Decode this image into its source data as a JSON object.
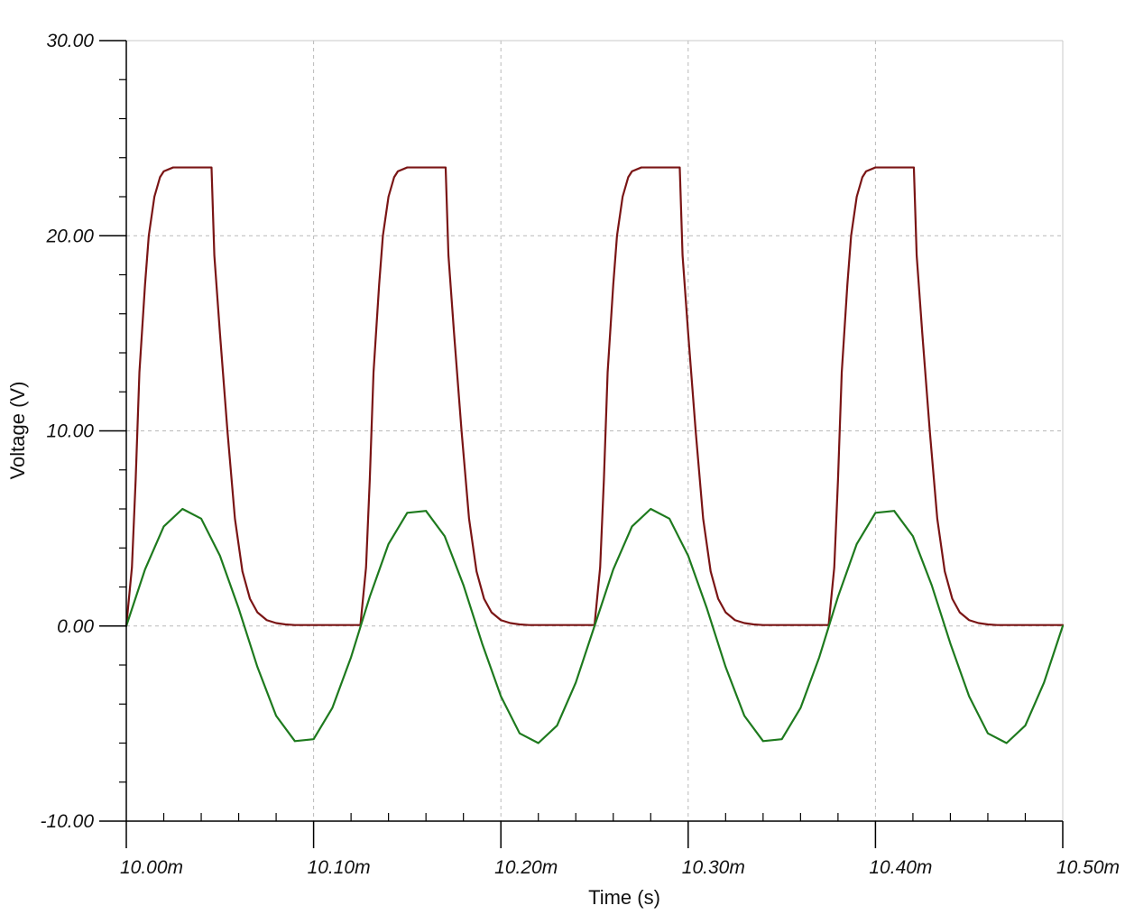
{
  "chart_data": {
    "type": "line",
    "xlabel": "Time (s)",
    "ylabel": "Voltage (V)",
    "xlim": [
      10.0,
      10.5
    ],
    "ylim": [
      -10,
      30
    ],
    "x_unit_suffix": "m",
    "x_ticks": [
      10.0,
      10.1,
      10.2,
      10.3,
      10.4,
      10.5
    ],
    "x_tick_labels": [
      "10.00m",
      "10.10m",
      "10.20m",
      "10.30m",
      "10.40m",
      "10.50m"
    ],
    "y_ticks": [
      -10,
      0,
      10,
      20,
      30
    ],
    "y_tick_labels": [
      "-10.00",
      "0.00",
      "10.00",
      "20.00",
      "30.00"
    ],
    "grid": true,
    "legend": "none",
    "series": [
      {
        "color": "#7a1515",
        "x": [
          10.0,
          10.003,
          10.005,
          10.007,
          10.01,
          10.012,
          10.015,
          10.018,
          10.02,
          10.025,
          10.03,
          10.035,
          10.04,
          10.0455,
          10.047,
          10.05,
          10.054,
          10.058,
          10.062,
          10.066,
          10.07,
          10.075,
          10.08,
          10.085,
          10.09,
          10.1,
          10.11,
          10.12,
          10.125,
          10.128,
          10.13,
          10.132,
          10.135,
          10.137,
          10.14,
          10.143,
          10.145,
          10.15,
          10.155,
          10.16,
          10.165,
          10.1705,
          10.172,
          10.175,
          10.179,
          10.183,
          10.187,
          10.191,
          10.195,
          10.2,
          10.205,
          10.21,
          10.215,
          10.225,
          10.235,
          10.245,
          10.25,
          10.253,
          10.255,
          10.257,
          10.26,
          10.262,
          10.265,
          10.268,
          10.27,
          10.275,
          10.28,
          10.285,
          10.29,
          10.2955,
          10.297,
          10.3,
          10.304,
          10.308,
          10.312,
          10.316,
          10.32,
          10.325,
          10.33,
          10.335,
          10.34,
          10.35,
          10.36,
          10.37,
          10.375,
          10.378,
          10.38,
          10.382,
          10.385,
          10.387,
          10.39,
          10.393,
          10.395,
          10.4,
          10.405,
          10.41,
          10.415,
          10.4205,
          10.422,
          10.425,
          10.429,
          10.433,
          10.437,
          10.441,
          10.445,
          10.45,
          10.455,
          10.46,
          10.465,
          10.475,
          10.485,
          10.495,
          10.5
        ],
        "y": [
          0.0,
          3.0,
          7.5,
          13.0,
          17.5,
          20.0,
          22.0,
          23.0,
          23.3,
          23.5,
          23.5,
          23.5,
          23.5,
          23.5,
          19.0,
          15.0,
          10.0,
          5.5,
          2.8,
          1.4,
          0.7,
          0.3,
          0.15,
          0.08,
          0.05,
          0.05,
          0.05,
          0.05,
          0.05,
          3.0,
          7.5,
          13.0,
          17.5,
          20.0,
          22.0,
          23.0,
          23.3,
          23.5,
          23.5,
          23.5,
          23.5,
          23.5,
          19.0,
          15.0,
          10.0,
          5.5,
          2.8,
          1.4,
          0.7,
          0.3,
          0.15,
          0.08,
          0.05,
          0.05,
          0.05,
          0.05,
          0.05,
          3.0,
          7.5,
          13.0,
          17.5,
          20.0,
          22.0,
          23.0,
          23.3,
          23.5,
          23.5,
          23.5,
          23.5,
          23.5,
          19.0,
          15.0,
          10.0,
          5.5,
          2.8,
          1.4,
          0.7,
          0.3,
          0.15,
          0.08,
          0.05,
          0.05,
          0.05,
          0.05,
          0.05,
          3.0,
          7.5,
          13.0,
          17.5,
          20.0,
          22.0,
          23.0,
          23.3,
          23.5,
          23.5,
          23.5,
          23.5,
          23.5,
          19.0,
          15.0,
          10.0,
          5.5,
          2.8,
          1.4,
          0.7,
          0.3,
          0.15,
          0.08,
          0.05,
          0.05,
          0.05,
          0.05,
          0.05
        ]
      },
      {
        "color": "#1e7a1e",
        "x": [
          10.0,
          10.01,
          10.02,
          10.03,
          10.04,
          10.05,
          10.06,
          10.07,
          10.08,
          10.09,
          10.1,
          10.11,
          10.12,
          10.13,
          10.14,
          10.15,
          10.16,
          10.17,
          10.18,
          10.19,
          10.2,
          10.21,
          10.22,
          10.23,
          10.24,
          10.25,
          10.26,
          10.27,
          10.28,
          10.29,
          10.3,
          10.31,
          10.32,
          10.33,
          10.34,
          10.35,
          10.36,
          10.37,
          10.38,
          10.39,
          10.4,
          10.41,
          10.42,
          10.43,
          10.44,
          10.45,
          10.46,
          10.47,
          10.48,
          10.49,
          10.5
        ],
        "y": [
          0.0,
          2.9,
          5.1,
          6.0,
          5.5,
          3.6,
          0.9,
          -2.1,
          -4.6,
          -5.9,
          -5.8,
          -4.2,
          -1.6,
          1.5,
          4.2,
          5.8,
          5.9,
          4.6,
          2.1,
          -0.9,
          -3.6,
          -5.5,
          -6.0,
          -5.1,
          -2.9,
          0.0,
          2.9,
          5.1,
          6.0,
          5.5,
          3.6,
          0.9,
          -2.1,
          -4.6,
          -5.9,
          -5.8,
          -4.2,
          -1.6,
          1.5,
          4.2,
          5.8,
          5.9,
          4.6,
          2.1,
          -0.9,
          -3.6,
          -5.5,
          -6.0,
          -5.1,
          -2.9,
          0.0
        ]
      }
    ]
  }
}
